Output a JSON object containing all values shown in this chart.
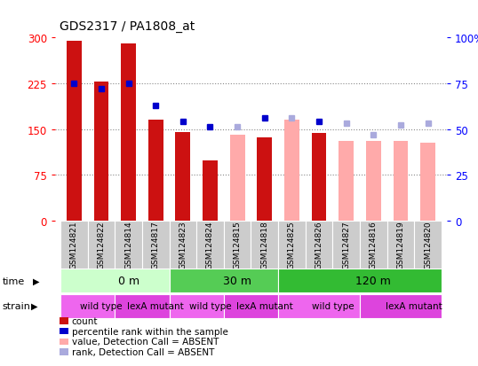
{
  "title": "GDS2317 / PA1808_at",
  "samples": [
    "GSM124821",
    "GSM124822",
    "GSM124814",
    "GSM124817",
    "GSM124823",
    "GSM124824",
    "GSM124815",
    "GSM124818",
    "GSM124825",
    "GSM124826",
    "GSM124827",
    "GSM124816",
    "GSM124819",
    "GSM124820"
  ],
  "bar_values": [
    295,
    228,
    290,
    165,
    145,
    98,
    null,
    137,
    null,
    144,
    null,
    null,
    null,
    null
  ],
  "bar_absent_values": [
    null,
    null,
    null,
    null,
    null,
    null,
    140,
    null,
    165,
    null,
    130,
    130,
    130,
    128
  ],
  "rank_pct": [
    75,
    72,
    75,
    63,
    54,
    51,
    51,
    56,
    56,
    54,
    53,
    47,
    52,
    53
  ],
  "rank_absent": [
    false,
    false,
    false,
    false,
    false,
    false,
    true,
    false,
    true,
    false,
    true,
    true,
    true,
    true
  ],
  "bar_color": "#cc1111",
  "bar_absent_color": "#ffaaaa",
  "rank_color": "#0000cc",
  "rank_absent_color": "#aaaadd",
  "ylim_left": [
    0,
    300
  ],
  "ylim_right": [
    0,
    100
  ],
  "yticks_left": [
    0,
    75,
    150,
    225,
    300
  ],
  "yticks_right": [
    0,
    25,
    50,
    75,
    100
  ],
  "ytick_labels_left": [
    "0",
    "75",
    "150",
    "225",
    "300"
  ],
  "ytick_labels_right": [
    "0",
    "25",
    "50",
    "75",
    "100%"
  ],
  "time_groups": [
    {
      "label": "0 m",
      "start": 0,
      "end": 4,
      "color": "#ccffcc"
    },
    {
      "label": "30 m",
      "start": 4,
      "end": 8,
      "color": "#55cc55"
    },
    {
      "label": "120 m",
      "start": 8,
      "end": 14,
      "color": "#33bb33"
    }
  ],
  "strain_groups": [
    {
      "label": "wild type",
      "start": 0,
      "end": 2,
      "color": "#ee66ee"
    },
    {
      "label": "lexA mutant",
      "start": 2,
      "end": 4,
      "color": "#dd44dd"
    },
    {
      "label": "wild type",
      "start": 4,
      "end": 6,
      "color": "#ee66ee"
    },
    {
      "label": "lexA mutant",
      "start": 6,
      "end": 8,
      "color": "#dd44dd"
    },
    {
      "label": "wild type",
      "start": 8,
      "end": 11,
      "color": "#ee66ee"
    },
    {
      "label": "lexA mutant",
      "start": 11,
      "end": 14,
      "color": "#dd44dd"
    }
  ],
  "legend_items": [
    {
      "label": "count",
      "color": "#cc1111"
    },
    {
      "label": "percentile rank within the sample",
      "color": "#0000cc"
    },
    {
      "label": "value, Detection Call = ABSENT",
      "color": "#ffaaaa"
    },
    {
      "label": "rank, Detection Call = ABSENT",
      "color": "#aaaadd"
    }
  ],
  "bg_color": "#ffffff",
  "grid_color": "#888888",
  "sample_bg_color": "#cccccc",
  "bar_width": 0.55
}
